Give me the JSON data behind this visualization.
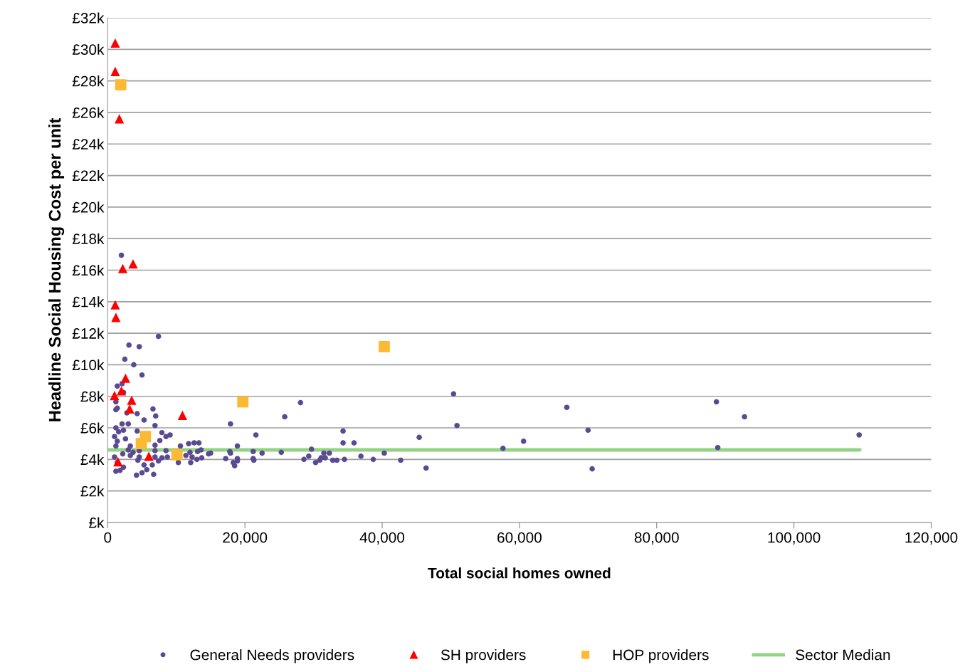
{
  "chart_data": {
    "type": "scatter",
    "xlabel": "Total social homes owned",
    "ylabel": "Headline Social Housing Cost per unit",
    "xlim": [
      0,
      120000
    ],
    "ylim": [
      0,
      32000
    ],
    "xticks": [
      {
        "value": 0,
        "label": "0"
      },
      {
        "value": 20000,
        "label": "20,000"
      },
      {
        "value": 40000,
        "label": "40,000"
      },
      {
        "value": 60000,
        "label": "60,000"
      },
      {
        "value": 80000,
        "label": "80,000"
      },
      {
        "value": 100000,
        "label": "100,000"
      },
      {
        "value": 120000,
        "label": "120,000"
      }
    ],
    "yticks": [
      {
        "value": 0,
        "label": "£k"
      },
      {
        "value": 2000,
        "label": "£2k"
      },
      {
        "value": 4000,
        "label": "£4k"
      },
      {
        "value": 6000,
        "label": "£6k"
      },
      {
        "value": 8000,
        "label": "£8k"
      },
      {
        "value": 10000,
        "label": "£10k"
      },
      {
        "value": 12000,
        "label": "£12k"
      },
      {
        "value": 14000,
        "label": "£14k"
      },
      {
        "value": 16000,
        "label": "£16k"
      },
      {
        "value": 18000,
        "label": "£18k"
      },
      {
        "value": 20000,
        "label": "£20k"
      },
      {
        "value": 22000,
        "label": "£22k"
      },
      {
        "value": 24000,
        "label": "£24k"
      },
      {
        "value": 26000,
        "label": "£26k"
      },
      {
        "value": 28000,
        "label": "£28k"
      },
      {
        "value": 30000,
        "label": "£30k"
      },
      {
        "value": 32000,
        "label": "£32k"
      }
    ],
    "grid": "y",
    "legend": "bottom",
    "series": [
      {
        "name": "General Needs providers",
        "marker": "circle",
        "color": "#5b4a91",
        "x": [
          2000,
          7400,
          3100,
          4600,
          2500,
          3800,
          5000,
          1400,
          2100,
          2300,
          1200,
          1400,
          1200,
          2800,
          4300,
          6600,
          7000,
          5300,
          6900,
          2100,
          3000,
          1200,
          1600,
          2300,
          4300,
          7900,
          8500,
          9100,
          1000,
          2600,
          1400,
          7600,
          6900,
          3300,
          1200,
          10600,
          11800,
          12600,
          13300,
          14700,
          3000,
          3700,
          4600,
          6900,
          8500,
          3300,
          4600,
          6900,
          7900,
          8700,
          1000,
          2200,
          12000,
          13100,
          13600,
          12300,
          13000,
          13700,
          12100,
          10300,
          7400,
          4400,
          1400,
          5300,
          6500,
          2300,
          1200,
          1800,
          5700,
          5000,
          4200,
          6700,
          11400,
          17900,
          21600,
          25800,
          28100,
          50400,
          50900,
          34300,
          34300,
          35900,
          45400,
          18900,
          29700,
          17800,
          21200,
          22500,
          25300,
          15000,
          31500,
          32300,
          36900,
          40300,
          29300,
          17900,
          17200,
          18900,
          21200,
          21300,
          18900,
          28600,
          31100,
          31700,
          32800,
          33400,
          34500,
          38700,
          42700,
          30900,
          30300,
          18300,
          18500,
          46400,
          57600,
          60600,
          66900,
          70000,
          70600,
          88700,
          92800,
          88900,
          109500
        ],
        "values": [
          16950,
          11800,
          11250,
          11150,
          10350,
          10000,
          9350,
          8650,
          8800,
          8250,
          7650,
          7250,
          7150,
          6950,
          6900,
          7200,
          6750,
          6500,
          6150,
          6250,
          6250,
          6000,
          5750,
          5850,
          5800,
          5700,
          5450,
          5550,
          5450,
          5300,
          5150,
          5200,
          4900,
          4850,
          4850,
          4850,
          5000,
          5050,
          5050,
          4350,
          4600,
          4450,
          4550,
          4550,
          4550,
          4250,
          4150,
          4150,
          4100,
          4150,
          4150,
          4350,
          4450,
          4500,
          4600,
          4150,
          4000,
          4100,
          3800,
          3800,
          3900,
          3950,
          3800,
          3650,
          3650,
          3500,
          3250,
          3300,
          3350,
          3150,
          3000,
          3050,
          4250,
          6250,
          5550,
          6700,
          7600,
          8150,
          6150,
          5800,
          5050,
          5050,
          5400,
          4850,
          4650,
          4500,
          4500,
          4400,
          4450,
          4400,
          4400,
          4400,
          4200,
          4400,
          4200,
          4400,
          4050,
          4050,
          4050,
          3950,
          3900,
          4000,
          4100,
          4100,
          3950,
          3950,
          4000,
          4000,
          3950,
          3950,
          3800,
          3800,
          3600,
          3450,
          4700,
          5150,
          7300,
          5850,
          3400,
          7650,
          6700,
          4750,
          5550
        ]
      },
      {
        "name": "SH providers",
        "marker": "triangle",
        "color": "#ff0000",
        "x": [
          1100,
          1100,
          1700,
          3700,
          2200,
          1100,
          1200,
          2600,
          2000,
          1000,
          3500,
          3200,
          10900,
          6000,
          1500
        ],
        "values": [
          30400,
          28600,
          25600,
          16400,
          16100,
          13800,
          13000,
          9150,
          8350,
          8050,
          7750,
          7200,
          6800,
          4200,
          3850
        ]
      },
      {
        "name": "HOP providers",
        "marker": "square",
        "color": "#fbb934",
        "x": [
          1900,
          40300,
          19700,
          5500,
          4900,
          10100
        ],
        "values": [
          27750,
          11150,
          7650,
          5450,
          5000,
          4300
        ]
      },
      {
        "name": "Sector Median",
        "type": "line",
        "color": "#92d483",
        "line_style": "solid",
        "x": [
          0,
          109600
        ],
        "values": [
          4600,
          4600
        ]
      }
    ]
  }
}
